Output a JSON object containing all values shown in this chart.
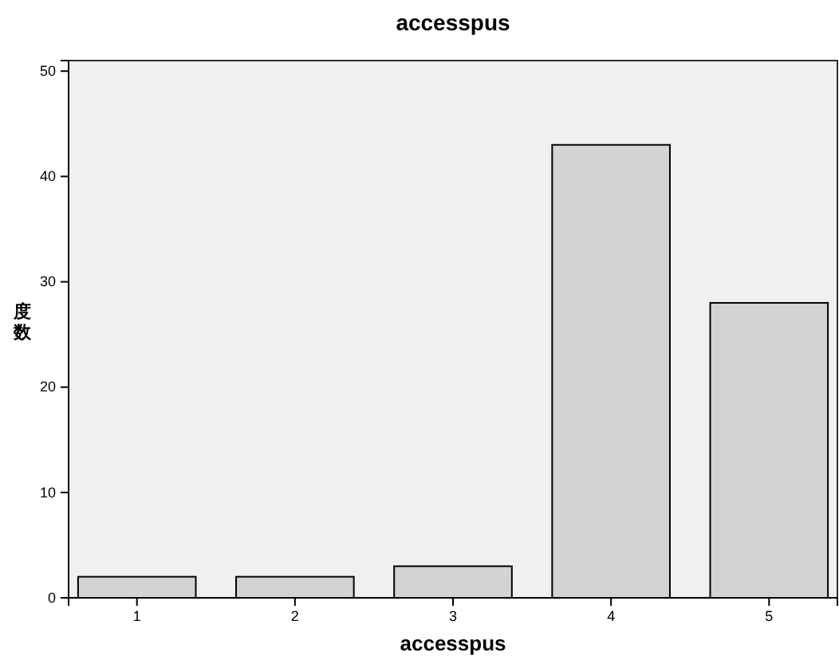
{
  "chart_data": {
    "type": "bar",
    "title": "accesspus",
    "xlabel": "accesspus",
    "ylabel": "度数",
    "categories": [
      "1",
      "2",
      "3",
      "4",
      "5"
    ],
    "values": [
      2,
      2,
      3,
      43,
      28
    ],
    "color": "#d3d3d3",
    "ylim": [
      0,
      51
    ],
    "yticks": [
      0,
      10,
      20,
      30,
      40,
      50
    ],
    "grid": false
  }
}
